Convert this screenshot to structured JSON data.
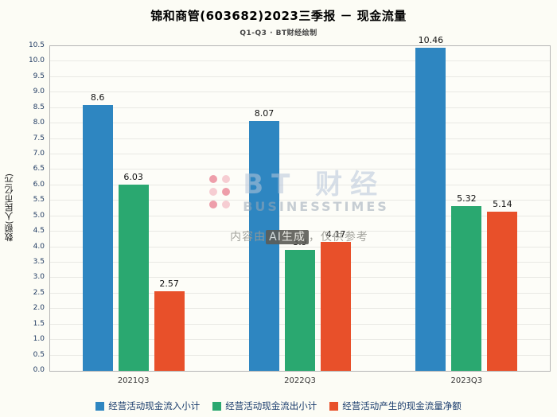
{
  "title": "锦和商管(603682)2023三季报 － 现金流量",
  "subtitle": "Q1-Q3 · BT财经绘制",
  "ylabel": "数额(人民币亿元)",
  "watermark": {
    "logo_text": "BT 财经",
    "logo_sub": "BUSINESSTIMES",
    "ai_prefix": "内容由",
    "ai_badge": "AI生成",
    "ai_suffix": "，仅供参考"
  },
  "chart_data": {
    "type": "bar",
    "title": "锦和商管(603682)2023三季报 － 现金流量",
    "subtitle": "Q1-Q3 · BT财经绘制",
    "xlabel": "",
    "ylabel": "数额(人民币亿元)",
    "categories": [
      "2021Q3",
      "2022Q3",
      "2023Q3"
    ],
    "series": [
      {
        "name": "经营活动现金流入小计",
        "color": "#2e86c1",
        "values": [
          8.6,
          8.07,
          10.46
        ],
        "labels": [
          "8.6",
          "8.07",
          "10.46"
        ]
      },
      {
        "name": "经营活动现金流出小计",
        "color": "#2aa870",
        "values": [
          6.03,
          3.9,
          5.32
        ],
        "labels": [
          "6.03",
          "3.9",
          "5.32"
        ]
      },
      {
        "name": "经营活动产生的现金流量净额",
        "color": "#e8502a",
        "values": [
          2.57,
          4.17,
          5.14
        ],
        "labels": [
          "2.57",
          "4.17",
          "5.14"
        ]
      }
    ],
    "ylim": [
      0,
      10.5
    ],
    "ytick_step": 0.5,
    "grid": true,
    "legend_position": "bottom"
  }
}
